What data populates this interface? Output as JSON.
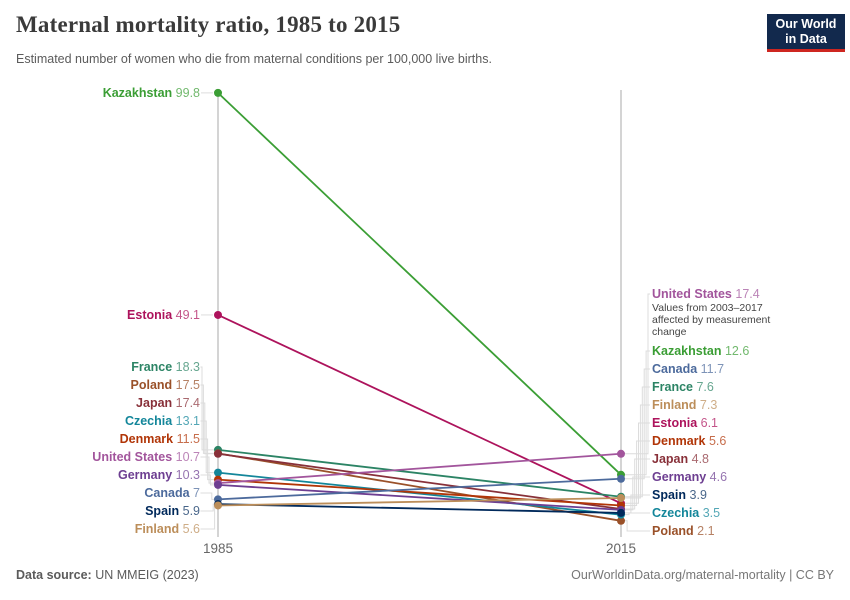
{
  "header": {
    "title": "Maternal mortality ratio, 1985 to 2015",
    "subtitle": "Estimated number of women who die from maternal conditions per 100,000 live births."
  },
  "logo": {
    "line1": "Our World",
    "line2": "in Data"
  },
  "colors": {
    "logo_bg": "#12294D",
    "logo_accent": "#CE2620",
    "axis": "#D4D4D4",
    "connector": "#DCDCDC",
    "tick_label": "#666666",
    "note_text": "#454545"
  },
  "chart_data": {
    "type": "line",
    "subtype": "slope",
    "title": "Maternal mortality ratio, 1985 to 2015",
    "x_labels": [
      "1985",
      "2015"
    ],
    "ylim": [
      0,
      100
    ],
    "grid": false,
    "legend": "direct-labels",
    "series": [
      {
        "name": "Kazakhstan",
        "color": "#3B9E35",
        "values": [
          99.8,
          12.6
        ]
      },
      {
        "name": "Estonia",
        "color": "#AD135C",
        "values": [
          49.1,
          6.1
        ]
      },
      {
        "name": "France",
        "color": "#2C8465",
        "values": [
          18.3,
          7.6
        ]
      },
      {
        "name": "Poland",
        "color": "#9A5129",
        "values": [
          17.5,
          2.1
        ]
      },
      {
        "name": "Japan",
        "color": "#883039",
        "values": [
          17.4,
          4.8
        ]
      },
      {
        "name": "Czechia",
        "color": "#13869A",
        "values": [
          13.1,
          3.5
        ]
      },
      {
        "name": "Denmark",
        "color": "#B13507",
        "values": [
          11.5,
          5.6
        ]
      },
      {
        "name": "United States",
        "color": "#A2559C",
        "values": [
          10.7,
          17.4
        ],
        "note": "Values from 2003–2017 affected by measurement change"
      },
      {
        "name": "Germany",
        "color": "#6D3E91",
        "values": [
          10.3,
          4.6
        ]
      },
      {
        "name": "Canada",
        "color": "#4C6A9C",
        "values": [
          7,
          11.7
        ]
      },
      {
        "name": "Spain",
        "color": "#00295B",
        "values": [
          5.9,
          3.9
        ]
      },
      {
        "name": "Finland",
        "color": "#BC8E5A",
        "values": [
          5.6,
          7.3
        ]
      }
    ]
  },
  "footer": {
    "source_label": "Data source:",
    "source_value": "UN MMEIG (2023)",
    "credit": "OurWorldinData.org/maternal-mortality | CC BY"
  }
}
